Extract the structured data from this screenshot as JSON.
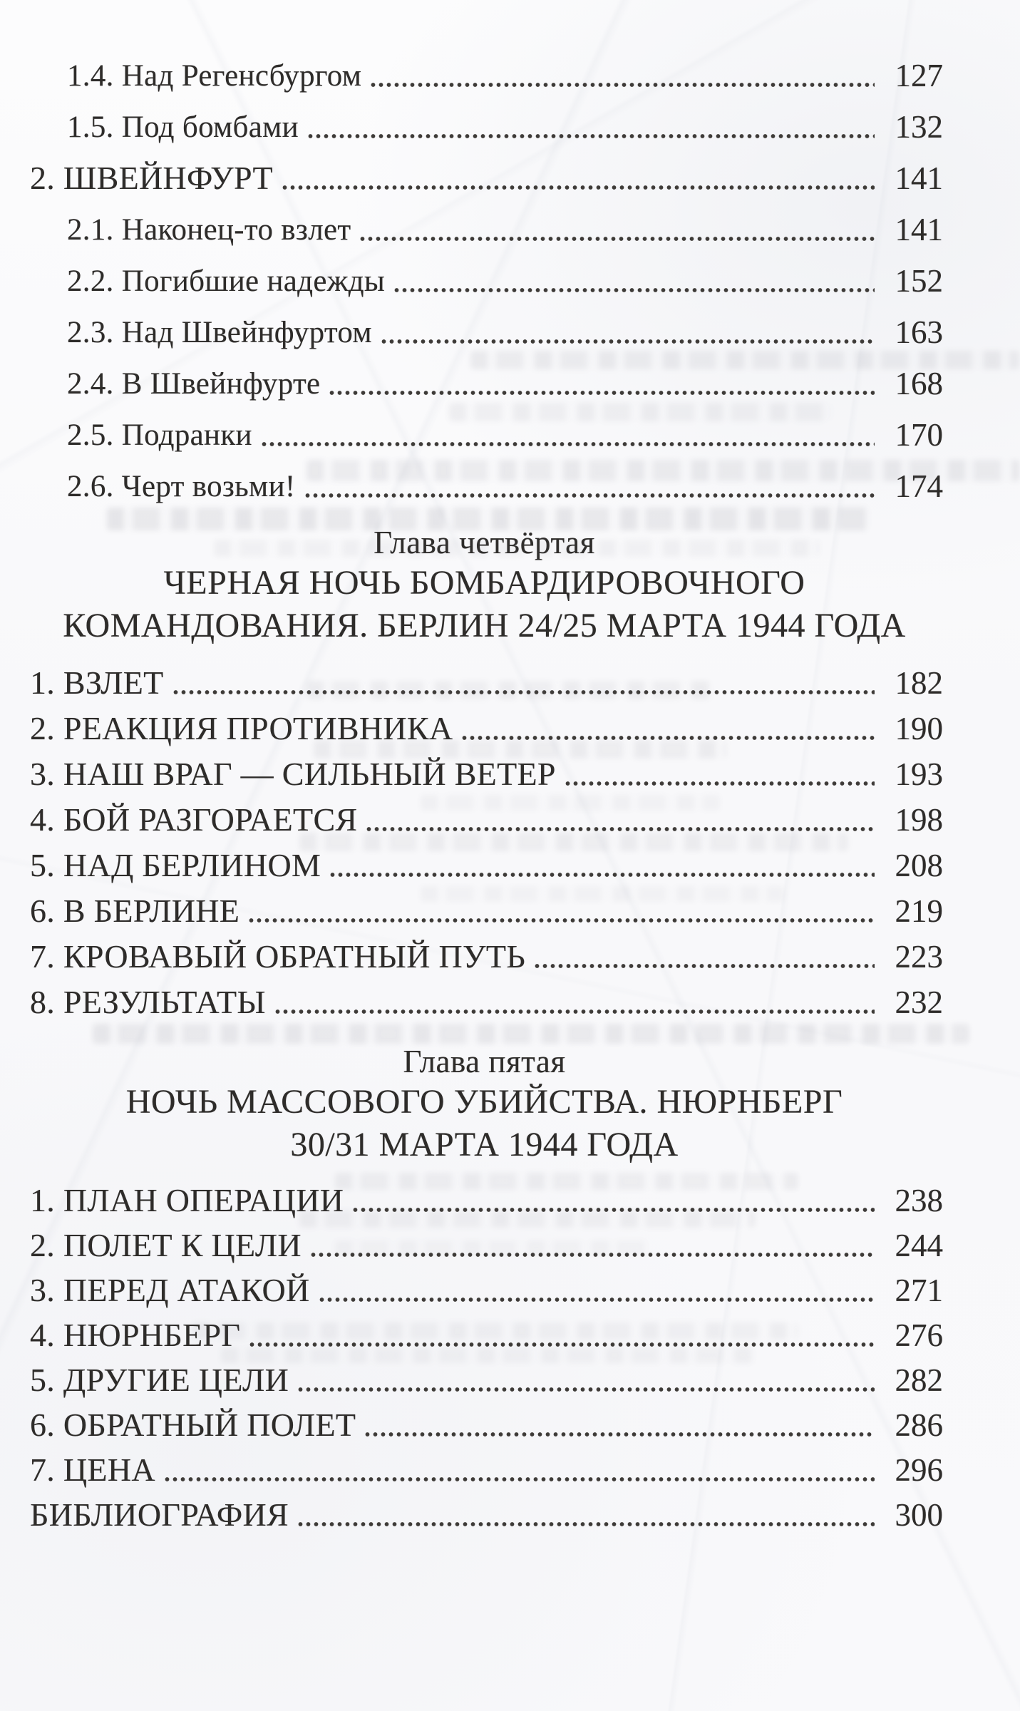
{
  "page": {
    "kind": "book-table-of-contents",
    "language": "ru",
    "text_color": "#2e2c2a",
    "paper_color": "#f9f9fb"
  },
  "toc": {
    "items": [
      {
        "type": "entry",
        "level": 2,
        "section": "s3",
        "label": "1.4. Над Регенсбургом",
        "page": "127"
      },
      {
        "type": "entry",
        "level": 2,
        "section": "s3",
        "label": "1.5. Под бомбами",
        "page": "132"
      },
      {
        "type": "entry",
        "level": 1,
        "section": "s3",
        "label": "2. ШВЕЙНФУРТ",
        "page": "141"
      },
      {
        "type": "entry",
        "level": 2,
        "section": "s3",
        "label": "2.1. Наконец-то взлет",
        "page": "141"
      },
      {
        "type": "entry",
        "level": 2,
        "section": "s3",
        "label": "2.2. Погибшие надежды",
        "page": "152"
      },
      {
        "type": "entry",
        "level": 2,
        "section": "s3",
        "label": "2.3. Над Швейнфуртом",
        "page": "163"
      },
      {
        "type": "entry",
        "level": 2,
        "section": "s3",
        "label": "2.4. В Швейнфурте",
        "page": "168"
      },
      {
        "type": "entry",
        "level": 2,
        "section": "s3",
        "label": "2.5. Подранки",
        "page": "170"
      },
      {
        "type": "entry",
        "level": 2,
        "section": "s3",
        "label": "2.6. Черт возьми!",
        "page": "174"
      },
      {
        "type": "chapter",
        "chapter": 4,
        "lines": [
          "Глава четвёртая",
          "ЧЕРНАЯ НОЧЬ БОМБАРДИРОВОЧНОГО",
          "КОМАНДОВАНИЯ. БЕРЛИН 24/25 МАРТА 1944 ГОДА"
        ]
      },
      {
        "type": "entry",
        "level": 1,
        "section": "s4",
        "label": "1. ВЗЛЕТ",
        "page": "182"
      },
      {
        "type": "entry",
        "level": 1,
        "section": "s4",
        "label": "2. РЕАКЦИЯ ПРОТИВНИКА",
        "page": "190"
      },
      {
        "type": "entry",
        "level": 1,
        "section": "s4",
        "label": "3. НАШ ВРАГ — СИЛЬНЫЙ ВЕТЕР",
        "page": "193"
      },
      {
        "type": "entry",
        "level": 1,
        "section": "s4",
        "label": "4. БОЙ РАЗГОРАЕТСЯ",
        "page": "198"
      },
      {
        "type": "entry",
        "level": 1,
        "section": "s4",
        "label": "5. НАД БЕРЛИНОМ",
        "page": "208"
      },
      {
        "type": "entry",
        "level": 1,
        "section": "s4",
        "label": "6. В БЕРЛИНЕ",
        "page": "219"
      },
      {
        "type": "entry",
        "level": 1,
        "section": "s4",
        "label": "7. КРОВАВЫЙ ОБРАТНЫЙ ПУТЬ",
        "page": "223"
      },
      {
        "type": "entry",
        "level": 1,
        "section": "s4",
        "label": "8. РЕЗУЛЬТАТЫ",
        "page": "232"
      },
      {
        "type": "chapter",
        "chapter": 5,
        "lines": [
          "Глава пятая",
          "НОЧЬ МАССОВОГО УБИЙСТВА. НЮРНБЕРГ",
          "30/31 МАРТА 1944 ГОДА"
        ]
      },
      {
        "type": "entry",
        "level": 1,
        "section": "s5",
        "label": "1. ПЛАН ОПЕРАЦИИ",
        "page": "238"
      },
      {
        "type": "entry",
        "level": 1,
        "section": "s5",
        "label": "2. ПОЛЕТ К ЦЕЛИ",
        "page": "244"
      },
      {
        "type": "entry",
        "level": 1,
        "section": "s5",
        "label": "3. ПЕРЕД АТАКОЙ",
        "page": "271"
      },
      {
        "type": "entry",
        "level": 1,
        "section": "s5",
        "label": "4. НЮРНБЕРГ",
        "page": "276"
      },
      {
        "type": "entry",
        "level": 1,
        "section": "s5",
        "label": "5. ДРУГИЕ ЦЕЛИ",
        "page": "282"
      },
      {
        "type": "entry",
        "level": 1,
        "section": "s5",
        "label": "6. ОБРАТНЫЙ ПОЛЕТ",
        "page": "286"
      },
      {
        "type": "entry",
        "level": 1,
        "section": "s5",
        "label": "7. ЦЕНА",
        "page": "296"
      },
      {
        "type": "entry",
        "level": 1,
        "section": "end",
        "label": "БИБЛИОГРАФИЯ",
        "page": "300"
      }
    ]
  }
}
